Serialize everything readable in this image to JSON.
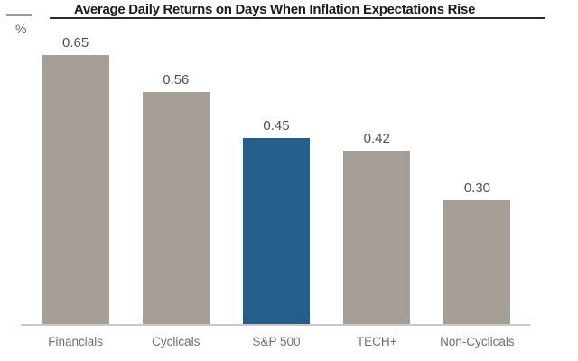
{
  "title": "Average Daily Returns on Days When Inflation Expectations Rise",
  "y_unit_label": "%",
  "colors": {
    "bar_default": "#a69f98",
    "bar_highlight": "#235e8c",
    "baseline": "#c9c9c9",
    "title_text": "#1c1c1c",
    "title_underline": "#2b2b2b",
    "axis_top_dash": "#9b9b9b",
    "unit_label": "#5f5f5f",
    "value_label": "#4f4f4f",
    "category_label": "#6f6f6f"
  },
  "chart_data": {
    "type": "bar",
    "title": "Average Daily Returns on Days When Inflation Expectations Rise",
    "categories": [
      "Financials",
      "Cyclicals",
      "S&P 500",
      "TECH+",
      "Non-Cyclicals"
    ],
    "values": [
      0.65,
      0.56,
      0.45,
      0.42,
      0.3
    ],
    "value_labels": [
      "0.65",
      "0.56",
      "0.45",
      "0.42",
      "0.30"
    ],
    "highlight_index": 2,
    "highlight_category": "S&P 500",
    "xlabel": "",
    "ylabel": "%",
    "ylim": [
      0,
      0.7
    ],
    "grid": false,
    "legend": false,
    "data_labels": "above bars",
    "y_axis_ticks": "none",
    "x_axis_line": true
  }
}
